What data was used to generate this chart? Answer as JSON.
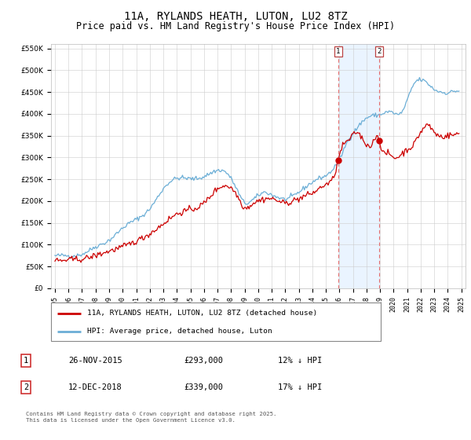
{
  "title": "11A, RYLANDS HEATH, LUTON, LU2 8TZ",
  "subtitle": "Price paid vs. HM Land Registry's House Price Index (HPI)",
  "title_fontsize": 10,
  "subtitle_fontsize": 8.5,
  "background_color": "#ffffff",
  "plot_bg_color": "#ffffff",
  "grid_color": "#cccccc",
  "ylabel_ticks": [
    "£0",
    "£50K",
    "£100K",
    "£150K",
    "£200K",
    "£250K",
    "£300K",
    "£350K",
    "£400K",
    "£450K",
    "£500K",
    "£550K"
  ],
  "ytick_values": [
    0,
    50000,
    100000,
    150000,
    200000,
    250000,
    300000,
    350000,
    400000,
    450000,
    500000,
    550000
  ],
  "ylim": [
    0,
    560000
  ],
  "hpi_color": "#6baed6",
  "property_color": "#cc0000",
  "marker1_date": 2015.91,
  "marker1_price": 293000,
  "marker2_date": 2018.95,
  "marker2_price": 339000,
  "marker1_label": "1",
  "marker2_label": "2",
  "vline_color": "#e87070",
  "shade_color": "#ddeeff",
  "legend_property": "11A, RYLANDS HEATH, LUTON, LU2 8TZ (detached house)",
  "legend_hpi": "HPI: Average price, detached house, Luton",
  "table_row1": [
    "1",
    "26-NOV-2015",
    "£293,000",
    "12% ↓ HPI"
  ],
  "table_row2": [
    "2",
    "12-DEC-2018",
    "£339,000",
    "17% ↓ HPI"
  ],
  "footnote": "Contains HM Land Registry data © Crown copyright and database right 2025.\nThis data is licensed under the Open Government Licence v3.0."
}
